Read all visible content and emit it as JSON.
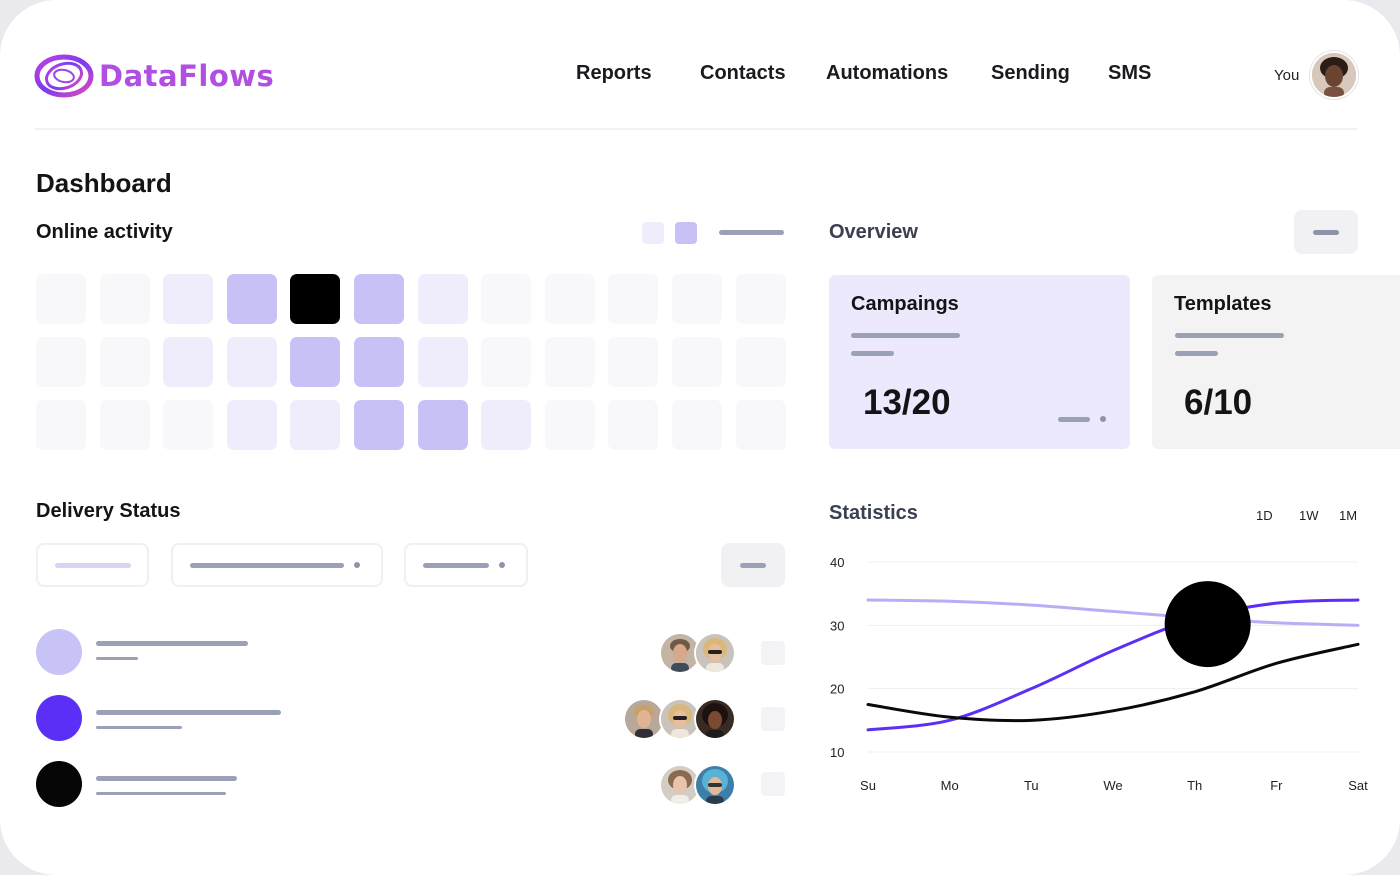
{
  "header": {
    "logo_text": "DataFlows",
    "nav": [
      "Reports",
      "Contacts",
      "Automations",
      "Sending",
      "SMS"
    ],
    "user_label": "You"
  },
  "dashboard": {
    "title": "Dashboard"
  },
  "online_activity": {
    "title": "Online activity",
    "grid_levels": [
      [
        0,
        0,
        1,
        2,
        3,
        2,
        1,
        0,
        0,
        0,
        0,
        0
      ],
      [
        0,
        0,
        1,
        1,
        2,
        2,
        1,
        0,
        0,
        0,
        0,
        0
      ],
      [
        0,
        0,
        0,
        1,
        1,
        2,
        2,
        1,
        0,
        0,
        0,
        0
      ]
    ],
    "level_colors": [
      "#f8f8fb",
      "#efedfb",
      "#c7c1f6",
      "#000000"
    ]
  },
  "overview": {
    "title": "Overview",
    "cards": [
      {
        "title": "Campaings",
        "value": "13/20",
        "bg": "#ede9fd"
      },
      {
        "title": "Templates",
        "value": "6/10",
        "bg": "#f3f3f4"
      }
    ]
  },
  "delivery_status": {
    "title": "Delivery Status",
    "rows": [
      {
        "color": "#c8c3f6",
        "avatars": 2
      },
      {
        "color": "#5b2ff5",
        "avatars": 3
      },
      {
        "color": "#050505",
        "avatars": 2
      }
    ]
  },
  "statistics": {
    "title": "Statistics",
    "ranges": [
      "1D",
      "1W",
      "1M"
    ]
  },
  "chart_data": {
    "type": "line",
    "x": [
      "Su",
      "Mo",
      "Tu",
      "We",
      "Th",
      "Fr",
      "Sat"
    ],
    "ylim": [
      10,
      40
    ],
    "yticks": [
      10,
      20,
      30,
      40
    ],
    "series": [
      {
        "color": "#b9aef5",
        "values": [
          34,
          33.8,
          33.2,
          32.2,
          31.2,
          30.4,
          30
        ]
      },
      {
        "color": "#5b2ff5",
        "values": [
          13.5,
          15,
          20,
          26,
          31,
          33.5,
          34
        ]
      },
      {
        "color": "#0a0a0a",
        "values": [
          17.5,
          15.5,
          15,
          16.5,
          19.5,
          24,
          27
        ]
      }
    ],
    "highlight": {
      "x": "Th",
      "y": 30.2
    },
    "grid": true
  }
}
